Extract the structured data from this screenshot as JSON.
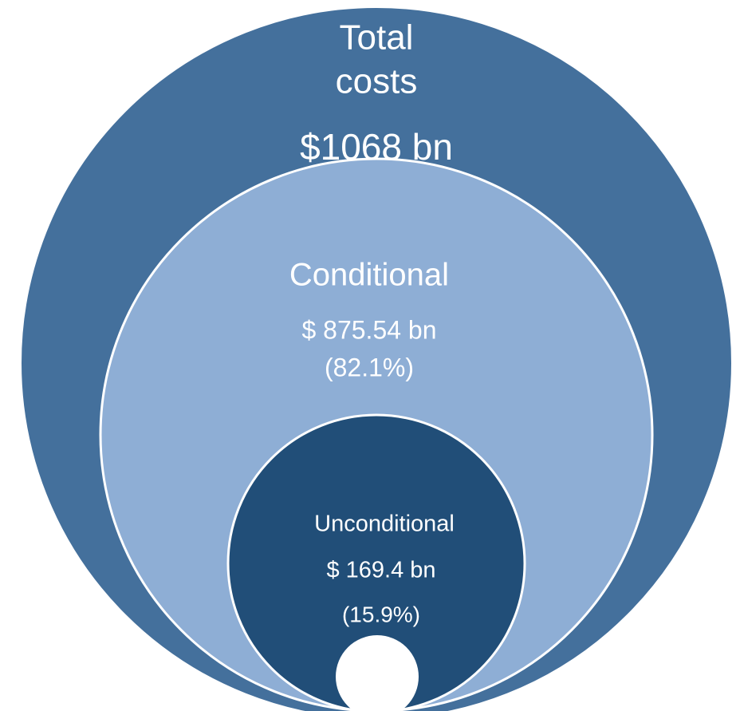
{
  "nodes": [
    {
      "label": [
        "Total",
        "costs"
      ],
      "value": "$1068 bn"
    },
    {
      "label": "Conditional",
      "value": "$ 875.54 bn",
      "share": "(82.1%)"
    },
    {
      "label": "Unconditional",
      "value": "$ 169.4 bn",
      "share": "(15.9%)"
    }
  ]
}
